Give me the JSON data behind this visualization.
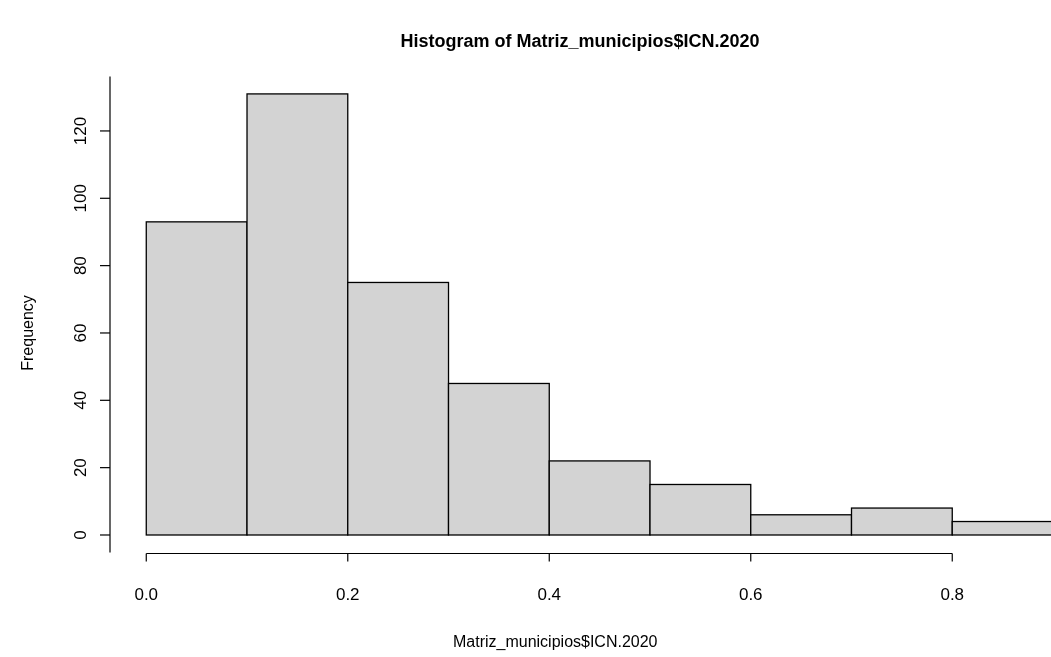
{
  "chart_data": {
    "type": "histogram",
    "title": "Histogram of Matriz_municipios$ICN.2020",
    "xlabel": "Matriz_municipios$ICN.2020",
    "ylabel": "Frequency",
    "bins": [
      0,
      0.1,
      0.2,
      0.3,
      0.4,
      0.5,
      0.6,
      0.7,
      0.8,
      0.9
    ],
    "values": [
      93,
      131,
      75,
      45,
      22,
      15,
      6,
      8,
      4
    ],
    "color": "#d3d3d3",
    "xlim": [
      -0.036,
      0.9
    ],
    "ylim": [
      -5.2,
      136.2
    ],
    "xticks": [
      {
        "value": 0,
        "label": "0.0"
      },
      0.2,
      0.4,
      0.6,
      0.8
    ],
    "yticks": [
      0,
      20,
      40,
      60,
      80,
      100,
      120
    ],
    "grid": false
  }
}
